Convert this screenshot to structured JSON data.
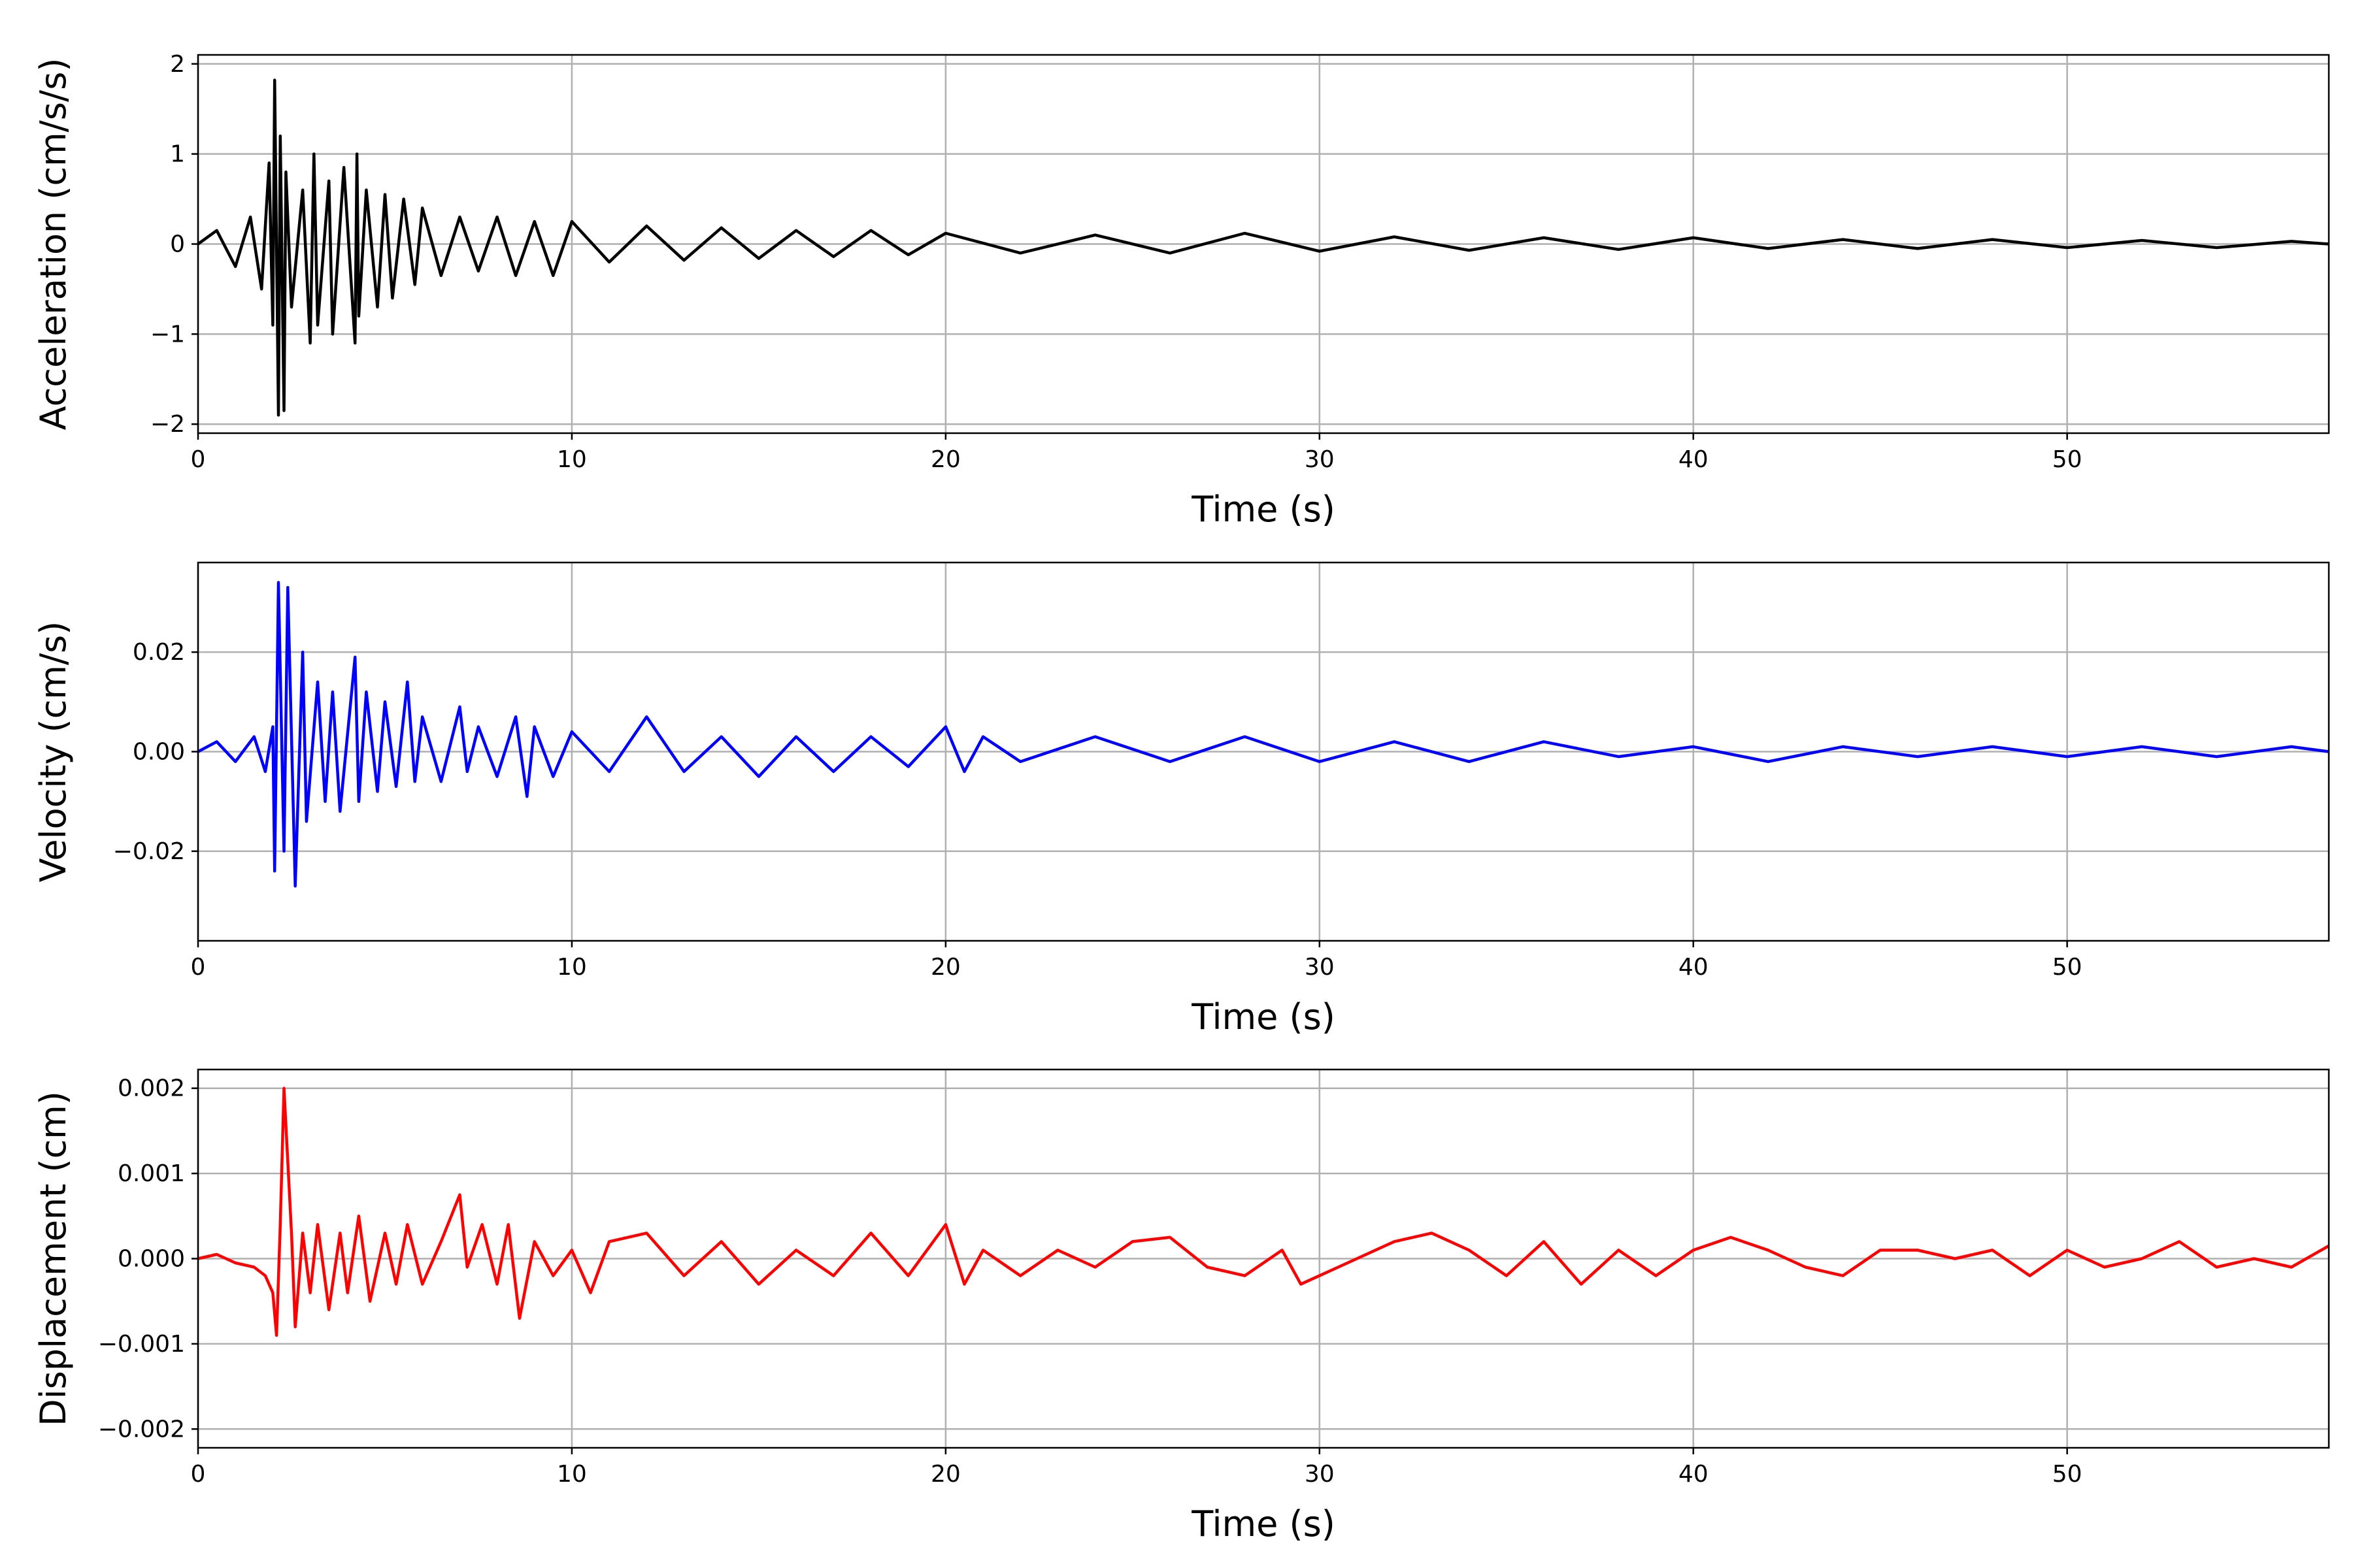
{
  "figure": {
    "background": "#ffffff",
    "grid": true,
    "grid_color": "#b0b0b0"
  },
  "chart_data": [
    {
      "type": "line",
      "title": "",
      "xlabel": "Time (s)",
      "ylabel": "Acceleration (cm/s/s)",
      "xlim": [
        0,
        57
      ],
      "ylim": [
        -2.1,
        2.1
      ],
      "xticks": [
        0,
        10,
        20,
        30,
        40,
        50
      ],
      "yticks": [
        2,
        1,
        0,
        -1,
        -2
      ],
      "ytick_labels": [
        "2",
        "1",
        "0",
        "−1",
        "−2"
      ],
      "grid": true,
      "legend": "none",
      "series": [
        {
          "color": "#000000",
          "x": [
            0,
            0.5,
            1.0,
            1.4,
            1.7,
            1.9,
            2.0,
            2.05,
            2.15,
            2.2,
            2.3,
            2.35,
            2.5,
            2.8,
            3.0,
            3.1,
            3.2,
            3.5,
            3.6,
            3.9,
            4.2,
            4.25,
            4.3,
            4.5,
            4.8,
            5.0,
            5.2,
            5.5,
            5.8,
            6.0,
            6.5,
            7.0,
            7.5,
            8.0,
            8.5,
            9.0,
            9.5,
            10.0,
            11,
            12,
            13,
            14,
            15,
            16,
            17,
            18,
            19,
            20,
            22,
            24,
            26,
            28,
            30,
            32,
            34,
            36,
            38,
            40,
            42,
            44,
            46,
            48,
            50,
            52,
            54,
            56,
            57
          ],
          "y": [
            0.0,
            0.15,
            -0.25,
            0.3,
            -0.5,
            0.9,
            -0.9,
            1.82,
            -1.9,
            1.2,
            -1.85,
            0.8,
            -0.7,
            0.6,
            -1.1,
            1.0,
            -0.9,
            0.7,
            -1.0,
            0.85,
            -1.1,
            1.0,
            -0.8,
            0.6,
            -0.7,
            0.55,
            -0.6,
            0.5,
            -0.45,
            0.4,
            -0.35,
            0.3,
            -0.3,
            0.3,
            -0.35,
            0.25,
            -0.35,
            0.25,
            -0.2,
            0.2,
            -0.18,
            0.18,
            -0.16,
            0.15,
            -0.14,
            0.15,
            -0.12,
            0.12,
            -0.1,
            0.1,
            -0.1,
            0.12,
            -0.08,
            0.08,
            -0.07,
            0.07,
            -0.06,
            0.07,
            -0.05,
            0.05,
            -0.05,
            0.05,
            -0.04,
            0.04,
            -0.04,
            0.03,
            0.0
          ]
        }
      ]
    },
    {
      "type": "line",
      "title": "",
      "xlabel": "Time (s)",
      "ylabel": "Velocity (cm/s)",
      "xlim": [
        0,
        57
      ],
      "ylim": [
        -0.038,
        0.038
      ],
      "xticks": [
        0,
        10,
        20,
        30,
        40,
        50
      ],
      "yticks": [
        0.02,
        0.0,
        -0.02
      ],
      "ytick_labels": [
        "0.02",
        "0.00",
        "−0.02"
      ],
      "grid": true,
      "legend": "none",
      "series": [
        {
          "color": "#0000ff",
          "x": [
            0,
            0.5,
            1.0,
            1.5,
            1.8,
            2.0,
            2.05,
            2.15,
            2.3,
            2.4,
            2.6,
            2.8,
            2.9,
            3.2,
            3.4,
            3.6,
            3.8,
            4.2,
            4.3,
            4.5,
            4.8,
            5.0,
            5.3,
            5.6,
            5.8,
            6.0,
            6.5,
            7.0,
            7.2,
            7.5,
            8.0,
            8.5,
            8.8,
            9.0,
            9.5,
            10.0,
            11,
            12,
            13,
            14,
            15,
            16,
            17,
            18,
            19,
            20,
            20.5,
            21,
            22,
            24,
            26,
            28,
            30,
            32,
            34,
            36,
            38,
            40,
            42,
            44,
            46,
            48,
            50,
            52,
            54,
            56,
            57
          ],
          "y": [
            0.0,
            0.002,
            -0.002,
            0.003,
            -0.004,
            0.005,
            -0.024,
            0.034,
            -0.02,
            0.033,
            -0.027,
            0.02,
            -0.014,
            0.014,
            -0.01,
            0.012,
            -0.012,
            0.019,
            -0.01,
            0.012,
            -0.008,
            0.01,
            -0.007,
            0.014,
            -0.006,
            0.007,
            -0.006,
            0.009,
            -0.004,
            0.005,
            -0.005,
            0.007,
            -0.009,
            0.005,
            -0.005,
            0.004,
            -0.004,
            0.007,
            -0.004,
            0.003,
            -0.005,
            0.003,
            -0.004,
            0.003,
            -0.003,
            0.005,
            -0.004,
            0.003,
            -0.002,
            0.003,
            -0.002,
            0.003,
            -0.002,
            0.002,
            -0.002,
            0.002,
            -0.001,
            0.001,
            -0.002,
            0.001,
            -0.001,
            0.001,
            -0.001,
            0.001,
            -0.001,
            0.001,
            0.0
          ]
        }
      ]
    },
    {
      "type": "line",
      "title": "",
      "xlabel": "Time (s)",
      "ylabel": "Displacement (cm)",
      "xlim": [
        0,
        57
      ],
      "ylim": [
        -0.00222,
        0.00222
      ],
      "xticks": [
        0,
        10,
        20,
        30,
        40,
        50
      ],
      "yticks": [
        0.002,
        0.001,
        0.0,
        -0.001,
        -0.002
      ],
      "ytick_labels": [
        "0.002",
        "0.001",
        "0.000",
        "−0.001",
        "−0.002"
      ],
      "grid": true,
      "legend": "none",
      "series": [
        {
          "color": "#ff0000",
          "x": [
            0,
            0.5,
            1.0,
            1.5,
            1.8,
            2.0,
            2.1,
            2.2,
            2.3,
            2.5,
            2.6,
            2.8,
            3.0,
            3.2,
            3.5,
            3.8,
            4.0,
            4.3,
            4.6,
            5.0,
            5.3,
            5.6,
            6.0,
            6.5,
            7.0,
            7.2,
            7.6,
            8.0,
            8.3,
            8.6,
            9.0,
            9.5,
            10.0,
            10.5,
            11,
            12,
            13,
            14,
            15,
            16,
            17,
            18,
            19,
            20,
            20.5,
            21,
            22,
            23,
            24,
            25,
            26,
            27,
            28,
            29,
            29.5,
            30,
            31,
            32,
            33,
            34,
            35,
            36,
            37,
            38,
            39,
            40,
            41,
            42,
            43,
            44,
            45,
            46,
            47,
            48,
            49,
            50,
            51,
            52,
            53,
            54,
            55,
            56,
            57
          ],
          "y": [
            0.0,
            5e-05,
            -5e-05,
            -0.0001,
            -0.0002,
            -0.0004,
            -0.0009,
            0.0004,
            0.002,
            0.0003,
            -0.0008,
            0.0003,
            -0.0004,
            0.0004,
            -0.0006,
            0.0003,
            -0.0004,
            0.0005,
            -0.0005,
            0.0003,
            -0.0003,
            0.0004,
            -0.0003,
            0.0002,
            0.00075,
            -0.0001,
            0.0004,
            -0.0003,
            0.0004,
            -0.0007,
            0.0002,
            -0.0002,
            0.0001,
            -0.0004,
            0.0002,
            0.0003,
            -0.0002,
            0.0002,
            -0.0003,
            0.0001,
            -0.0002,
            0.0003,
            -0.0002,
            0.0004,
            -0.0003,
            0.0001,
            -0.0002,
            0.0001,
            -0.0001,
            0.0002,
            0.00025,
            -0.0001,
            -0.0002,
            0.0001,
            -0.0003,
            -0.0002,
            0.0,
            0.0002,
            0.0003,
            0.0001,
            -0.0002,
            0.0002,
            -0.0003,
            0.0001,
            -0.0002,
            0.0001,
            0.00025,
            0.0001,
            -0.0001,
            -0.0002,
            0.0001,
            0.0001,
            0.0,
            0.0001,
            -0.0002,
            0.0001,
            -0.0001,
            0.0,
            0.0002,
            -0.0001,
            0.0,
            -0.0001,
            0.00015
          ]
        }
      ]
    }
  ]
}
